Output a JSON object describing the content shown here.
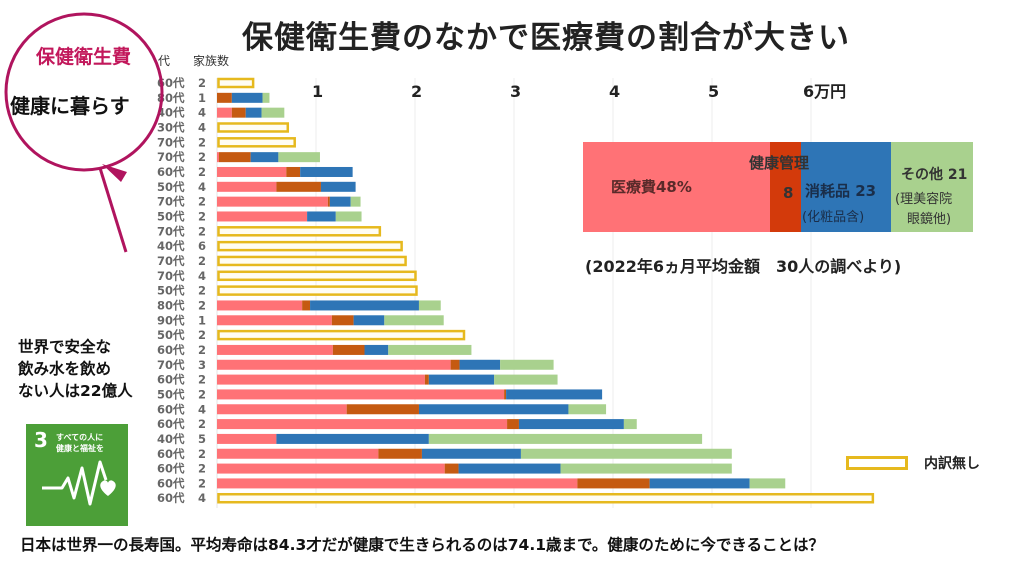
{
  "title": "保健衛生費のなかで医療費の割合が大きい",
  "bubble": {
    "line1": "保健衛生費",
    "line2": "健康に暮らす"
  },
  "colors": {
    "medical": "#ff7276",
    "health_mgmt": "#c55a11",
    "consumables": "#2e75b6",
    "other": "#a9d18e",
    "no_breakdown": "#e6b91e",
    "accent": "#c2185b"
  },
  "summary": {
    "medical_label": "医療費48%",
    "health_label": "健康管理",
    "health_value": "8",
    "consumables_label": "消耗品 23",
    "consumables_sub": "(化粧品含)",
    "other_label": "その他 21",
    "other_sub1": "(理美容院",
    "other_sub2": "眼鏡他)",
    "shares": [
      48,
      8,
      23,
      21
    ],
    "note": "(2022年6ヵ月平均金額　30人の調べより)"
  },
  "water_text": [
    "世界で安全な",
    "飲み水を飲め",
    "ない人は22億人"
  ],
  "sdg": {
    "number": "3",
    "text_line1": "すべての人に",
    "text_line2": "健康と福祉を",
    "icon": "heartbeat-heart-icon"
  },
  "legend": {
    "label": "内訳無し"
  },
  "footer": "日本は世界一の長寿国。平均寿命は84.3才だが健康で生きられるのは74.1歳まで。健康のために今できることは？",
  "chart_data": {
    "type": "bar",
    "orientation": "horizontal-stacked",
    "title": "保健衛生費のなかで医療費の割合が大きい",
    "xlabel": "万円",
    "column_headers": [
      "代",
      "家族数"
    ],
    "xlim": [
      0,
      6.6
    ],
    "xticks": [
      1,
      2,
      3,
      4,
      5,
      6
    ],
    "xtick_labels": [
      "1",
      "2",
      "3",
      "4",
      "5",
      "6万円"
    ],
    "grid": true,
    "legend_position": "bottom-right",
    "segment_names": [
      "医療費",
      "健康管理",
      "消耗品",
      "その他"
    ],
    "rows": [
      {
        "age": "60代",
        "family": "2",
        "no_breakdown": 0.38
      },
      {
        "age": "80代",
        "family": "1",
        "segments": [
          0,
          0.15,
          0.31,
          0.07
        ]
      },
      {
        "age": "40代",
        "family": "4",
        "segments": [
          0.15,
          0.14,
          0.16,
          0.23
        ]
      },
      {
        "age": "30代",
        "family": "4",
        "no_breakdown": 0.73
      },
      {
        "age": "70代",
        "family": "2",
        "no_breakdown": 0.8
      },
      {
        "age": "70代",
        "family": "2",
        "segments": [
          0.02,
          0.32,
          0.28,
          0.42
        ]
      },
      {
        "age": "60代",
        "family": "2",
        "segments": [
          0.7,
          0.14,
          0.53,
          0
        ]
      },
      {
        "age": "50代",
        "family": "4",
        "segments": [
          0.6,
          0.45,
          0.35,
          0
        ]
      },
      {
        "age": "70代",
        "family": "2",
        "segments": [
          1.12,
          0.02,
          0.21,
          0.1
        ]
      },
      {
        "age": "50代",
        "family": "2",
        "segments": [
          0.91,
          0,
          0.29,
          0.26
        ]
      },
      {
        "age": "70代",
        "family": "2",
        "no_breakdown": 1.66
      },
      {
        "age": "40代",
        "family": "6",
        "no_breakdown": 1.88
      },
      {
        "age": "70代",
        "family": "2",
        "no_breakdown": 1.92
      },
      {
        "age": "70代",
        "family": "4",
        "no_breakdown": 2.02
      },
      {
        "age": "50代",
        "family": "2",
        "no_breakdown": 2.03
      },
      {
        "age": "80代",
        "family": "2",
        "segments": [
          0.86,
          0.08,
          1.1,
          0.22
        ]
      },
      {
        "age": "90代",
        "family": "1",
        "segments": [
          1.16,
          0.22,
          0.31,
          0.6
        ]
      },
      {
        "age": "50代",
        "family": "2",
        "no_breakdown": 2.51
      },
      {
        "age": "60代",
        "family": "2",
        "segments": [
          1.17,
          0.32,
          0.24,
          0.84
        ]
      },
      {
        "age": "70代",
        "family": "3",
        "segments": [
          2.36,
          0.09,
          0.41,
          0.54
        ]
      },
      {
        "age": "60代",
        "family": "2",
        "segments": [
          2.1,
          0.04,
          0.66,
          0.64
        ]
      },
      {
        "age": "50代",
        "family": "2",
        "segments": [
          2.9,
          0.02,
          0.97,
          0
        ]
      },
      {
        "age": "60代",
        "family": "4",
        "segments": [
          1.31,
          0.73,
          1.51,
          0.38
        ]
      },
      {
        "age": "60代",
        "family": "2",
        "segments": [
          2.93,
          0.12,
          1.06,
          0.13
        ]
      },
      {
        "age": "40代",
        "family": "5",
        "segments": [
          0.6,
          0,
          1.54,
          2.76
        ]
      },
      {
        "age": "60代",
        "family": "2",
        "segments": [
          1.63,
          0.44,
          1.0,
          2.13
        ]
      },
      {
        "age": "60代",
        "family": "2",
        "segments": [
          2.3,
          0.14,
          1.03,
          1.73
        ]
      },
      {
        "age": "60代",
        "family": "2",
        "segments": [
          3.64,
          0.73,
          1.01,
          0.36
        ]
      },
      {
        "age": "60代",
        "family": "4",
        "no_breakdown": 6.64
      }
    ]
  }
}
